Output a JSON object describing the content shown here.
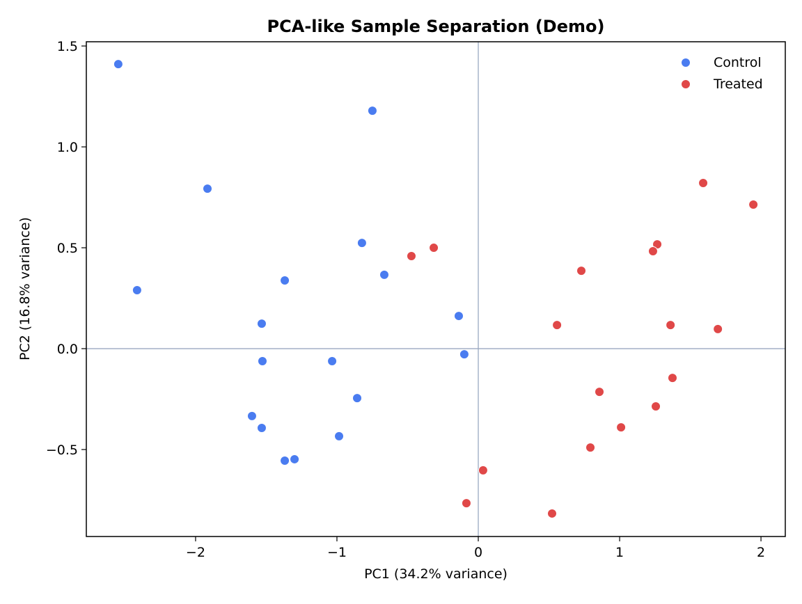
{
  "chart_data": {
    "type": "scatter",
    "title": "PCA-like Sample Separation (Demo)",
    "xlabel": "PC1 (34.2% variance)",
    "ylabel": "PC2 (16.8% variance)",
    "xlim": [
      -2.773,
      2.172
    ],
    "ylim": [
      -0.931,
      1.521
    ],
    "xticks": [
      -2,
      -1,
      0,
      1,
      2
    ],
    "xtick_labels": [
      "−2",
      "−1",
      "0",
      "1",
      "2"
    ],
    "yticks": [
      -0.5,
      0.0,
      0.5,
      1.0,
      1.5
    ],
    "ytick_labels": [
      "−0.5",
      "0.0",
      "0.5",
      "1.0",
      "1.5"
    ],
    "grid": false,
    "reference_lines": {
      "x": 0,
      "y": 0,
      "color": "#9aa8c0"
    },
    "legend_position": "top-right",
    "series": [
      {
        "name": "Control",
        "color": "#4a7cf0",
        "points": [
          [
            -2.547,
            1.41
          ],
          [
            -0.749,
            1.179
          ],
          [
            -1.916,
            0.793
          ],
          [
            -0.823,
            0.524
          ],
          [
            -2.414,
            0.29
          ],
          [
            -1.369,
            0.338
          ],
          [
            -0.665,
            0.366
          ],
          [
            -1.532,
            0.124
          ],
          [
            -0.138,
            0.162
          ],
          [
            -1.527,
            -0.062
          ],
          [
            -1.034,
            -0.062
          ],
          [
            -0.099,
            -0.028
          ],
          [
            -0.857,
            -0.245
          ],
          [
            -1.601,
            -0.334
          ],
          [
            -1.532,
            -0.393
          ],
          [
            -0.985,
            -0.434
          ],
          [
            -1.369,
            -0.555
          ],
          [
            -1.3,
            -0.548
          ]
        ]
      },
      {
        "name": "Treated",
        "color": "#e04848",
        "points": [
          [
            1.591,
            0.821
          ],
          [
            1.946,
            0.714
          ],
          [
            1.266,
            0.517
          ],
          [
            1.236,
            0.483
          ],
          [
            -0.473,
            0.459
          ],
          [
            -0.315,
            0.5
          ],
          [
            0.729,
            0.386
          ],
          [
            0.557,
            0.117
          ],
          [
            1.36,
            0.117
          ],
          [
            1.695,
            0.097
          ],
          [
            1.374,
            -0.145
          ],
          [
            0.857,
            -0.214
          ],
          [
            1.256,
            -0.286
          ],
          [
            1.01,
            -0.39
          ],
          [
            0.793,
            -0.49
          ],
          [
            0.034,
            -0.603
          ],
          [
            -0.084,
            -0.766
          ],
          [
            0.522,
            -0.817
          ]
        ]
      }
    ]
  }
}
